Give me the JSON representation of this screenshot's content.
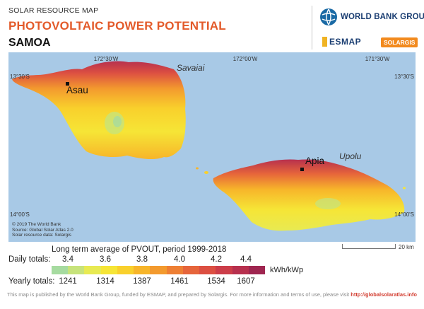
{
  "header": {
    "map_label": "SOLAR RESOURCE MAP",
    "title": "PHOTOVOLTAIC POWER POTENTIAL",
    "country": "SAMOA"
  },
  "logos": {
    "world_bank": "WORLD BANK GROUP",
    "esmap": "ESMAP",
    "solargis": "SOLARGIS"
  },
  "map": {
    "longitude_ticks": [
      "172°30'W",
      "172°00'W",
      "171°30'W"
    ],
    "latitude_ticks": [
      "13°30'S",
      "14°00'S"
    ],
    "island_labels": [
      "Savaiai",
      "Upolu"
    ],
    "cities": [
      "Asau",
      "Apia"
    ],
    "credits": [
      "© 2019 The World Bank",
      "Source: Global Solar Atlas 2.0",
      "Solar resource data: Solargis"
    ],
    "scale_label": "20 km"
  },
  "legend": {
    "title": "Long term average of PVOUT, period 1999-2018",
    "daily_label": "Daily totals:",
    "daily_values": [
      "3.4",
      "3.6",
      "3.8",
      "4.0",
      "4.2",
      "4.4"
    ],
    "yearly_label": "Yearly totals:",
    "yearly_values": [
      "1241",
      "1314",
      "1387",
      "1461",
      "1534",
      "1607"
    ],
    "unit": "kWh/kWp",
    "colors": [
      "#a6dba0",
      "#c7e37b",
      "#e8ea52",
      "#f6e536",
      "#f9d02c",
      "#f7b52a",
      "#f39a2e",
      "#ee7f34",
      "#e6653b",
      "#dc4f42",
      "#cc3d49",
      "#b7304e",
      "#9f2650"
    ]
  },
  "footer": {
    "text": "This map is published by the World Bank Group, funded by ESMAP, and prepared by Solargis. For more information and terms of use, please visit",
    "link": "http://globalsolaratlas.info"
  }
}
